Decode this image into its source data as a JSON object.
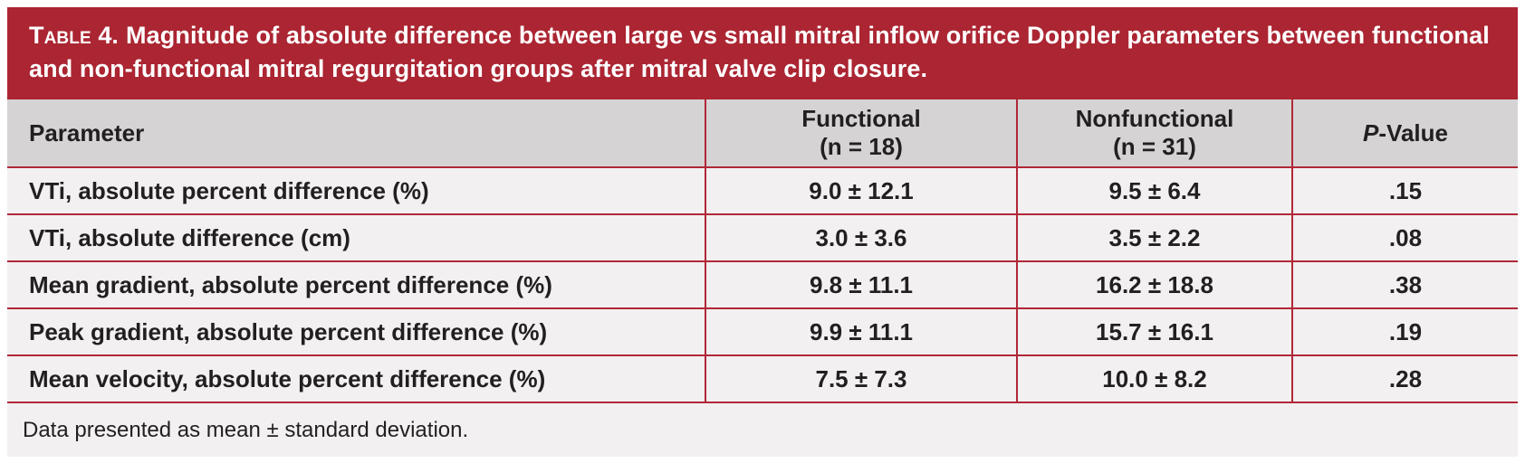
{
  "colors": {
    "banner": "#ab2532",
    "banner_text": "#ffffff",
    "header_bg": "#d5d3d4",
    "row_bg": "#f2f0f1",
    "border": "#b02837",
    "text": "#231f20",
    "page_bg": "#ffffff"
  },
  "title": {
    "label": "Table 4.",
    "text": "Magnitude of absolute difference between large vs small mitral inflow orifice Doppler parameters between functional and non-functional mitral regurgitation groups after mitral valve clip closure."
  },
  "columns": {
    "parameter": "Parameter",
    "functional": {
      "label": "Functional",
      "sub": "(n = 18)"
    },
    "nonfunctional": {
      "label": "Nonfunctional",
      "sub": "(n = 31)"
    },
    "p_value": {
      "italic": "P",
      "rest": "-Value"
    }
  },
  "rows": [
    {
      "parameter": "VTi, absolute percent difference (%)",
      "functional": "9.0 ± 12.1",
      "nonfunctional": "9.5 ± 6.4",
      "p": ".15"
    },
    {
      "parameter": "VTi, absolute difference (cm)",
      "functional": "3.0 ± 3.6",
      "nonfunctional": "3.5 ± 2.2",
      "p": ".08"
    },
    {
      "parameter": "Mean gradient, absolute percent difference (%)",
      "functional": "9.8 ± 11.1",
      "nonfunctional": "16.2 ± 18.8",
      "p": ".38"
    },
    {
      "parameter": "Peak gradient, absolute percent difference (%)",
      "functional": "9.9 ± 11.1",
      "nonfunctional": "15.7 ± 16.1",
      "p": ".19"
    },
    {
      "parameter": "Mean velocity, absolute percent difference (%)",
      "functional": "7.5 ± 7.3",
      "nonfunctional": "10.0 ± 8.2",
      "p": ".28"
    }
  ],
  "footnote": "Data presented as mean ± standard deviation."
}
